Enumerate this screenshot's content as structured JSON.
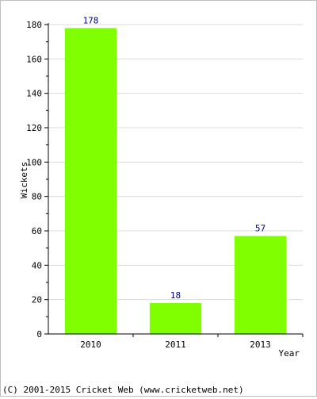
{
  "chart_data": {
    "type": "bar",
    "categories": [
      "2010",
      "2011",
      "2013"
    ],
    "series": [
      {
        "values": [
          178,
          18,
          57
        ]
      }
    ],
    "data_labels": [
      "178",
      "18",
      "57"
    ],
    "xlabel": "Year",
    "ylabel": "Wickets",
    "ylim": [
      0,
      180
    ],
    "yticks": [
      0,
      20,
      40,
      60,
      80,
      100,
      120,
      140,
      160,
      180
    ],
    "grid": true,
    "legend": "none",
    "colors": {
      "bar": "#80ff00",
      "value_label": "#000080",
      "grid": "#dcdcdc",
      "axis": "#000000"
    }
  },
  "footer": {
    "text": "(C) 2001-2015 Cricket Web (www.cricketweb.net)"
  }
}
